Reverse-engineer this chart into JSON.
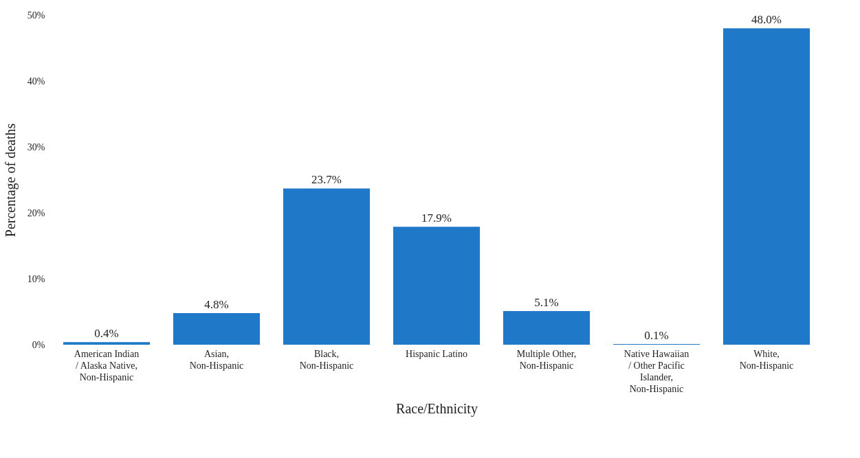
{
  "chart_data": {
    "type": "bar",
    "xlabel": "Race/Ethnicity",
    "ylabel": "Percentage of deaths",
    "categories": [
      "American Indian / Alaska Native, Non-Hispanic",
      "Asian, Non-Hispanic",
      "Black, Non-Hispanic",
      "Hispanic Latino",
      "Multiple Other, Non-Hispanic",
      "Native Hawaiian / Other Pacific Islander, Non-Hispanic",
      "White, Non-Hispanic"
    ],
    "values": [
      0.4,
      4.8,
      23.7,
      17.9,
      5.1,
      0.1,
      48.0
    ],
    "value_labels": [
      "0.4%",
      "4.8%",
      "23.7%",
      "17.9%",
      "5.1%",
      "0.1%",
      "48.0%"
    ],
    "color": "#1f78c8",
    "ylim": [
      0,
      50
    ],
    "yticks": [
      {
        "value": 0,
        "label": "0%"
      },
      {
        "value": 10,
        "label": "10%"
      },
      {
        "value": 20,
        "label": "20%"
      },
      {
        "value": 30,
        "label": "30%"
      },
      {
        "value": 40,
        "label": "40%"
      },
      {
        "value": 50,
        "label": "50%"
      }
    ],
    "grid": false
  }
}
